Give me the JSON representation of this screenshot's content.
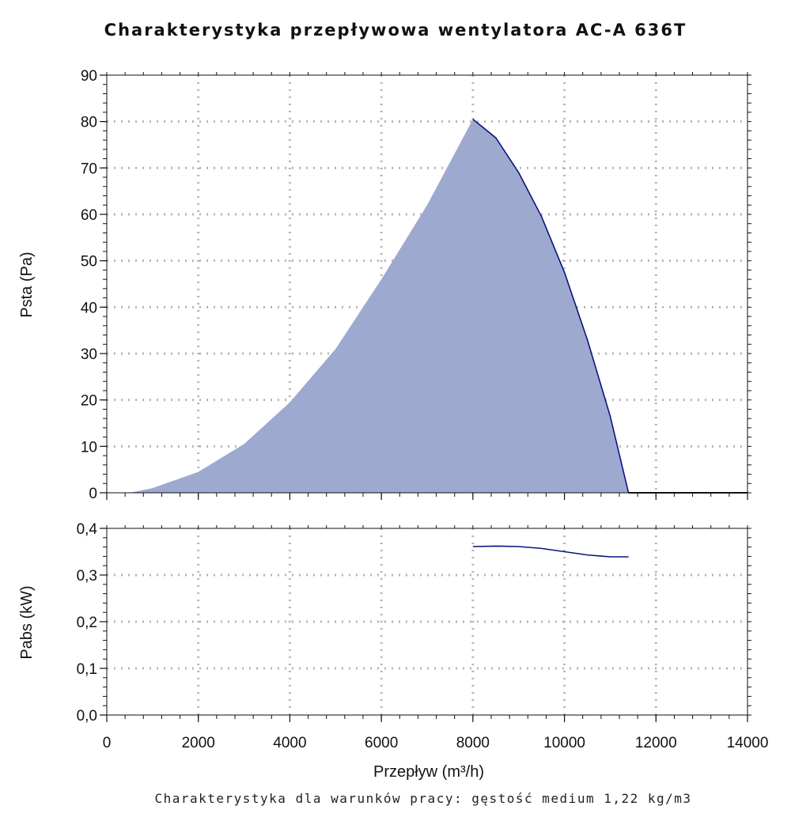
{
  "title": "Charakterystyka przepływowa wentylatora AC-A 636T",
  "footnote": "Charakterystyka dla warunków pracy: gęstość medium 1,22 kg/m3",
  "colors": {
    "fill": "#9ea9cf",
    "line": "#0a1480",
    "grid": "#b5b5b5"
  },
  "chart_data": [
    {
      "type": "area",
      "xlabel": "Przepływ (m³/h)",
      "ylabel": "Psta (Pa)",
      "xlim": [
        0,
        14000
      ],
      "ylim": [
        0,
        90
      ],
      "grid": true,
      "x_ticks": [
        0,
        2000,
        4000,
        6000,
        8000,
        10000,
        12000,
        14000
      ],
      "y_ticks": [
        "0",
        "10",
        "20",
        "30",
        "40",
        "50",
        "60",
        "70",
        "80",
        "90"
      ],
      "y_tick_values": [
        0,
        10,
        20,
        30,
        40,
        50,
        60,
        70,
        80,
        90
      ],
      "series": [
        {
          "filled_region": [
            [
              500,
              0
            ],
            [
              1000,
              1
            ],
            [
              2000,
              4.5
            ],
            [
              3000,
              10.5
            ],
            [
              4000,
              19.5
            ],
            [
              5000,
              31
            ],
            [
              6000,
              46
            ],
            [
              7000,
              62
            ],
            [
              8000,
              80.5
            ]
          ],
          "values": [
            [
              8000,
              80.5
            ],
            [
              8500,
              76.5
            ],
            [
              9000,
              69
            ],
            [
              9500,
              59.5
            ],
            [
              10000,
              47.5
            ],
            [
              10500,
              33
            ],
            [
              11000,
              16.5
            ],
            [
              11400,
              0
            ]
          ]
        }
      ]
    },
    {
      "type": "line",
      "xlabel": "Przepływ (m³/h)",
      "ylabel": "Pabs (kW)",
      "xlim": [
        0,
        14000
      ],
      "ylim": [
        0,
        0.4
      ],
      "grid": true,
      "x_ticks": [
        "0",
        "2000",
        "4000",
        "6000",
        "8000",
        "10000",
        "12000",
        "14000"
      ],
      "x_tick_values": [
        0,
        2000,
        4000,
        6000,
        8000,
        10000,
        12000,
        14000
      ],
      "y_ticks": [
        "0,0",
        "0,1",
        "0,2",
        "0,3",
        "0,4"
      ],
      "y_tick_values": [
        0,
        0.1,
        0.2,
        0.3,
        0.4
      ],
      "series": [
        {
          "values": [
            [
              8000,
              0.361
            ],
            [
              8500,
              0.362
            ],
            [
              9000,
              0.361
            ],
            [
              9500,
              0.357
            ],
            [
              10000,
              0.35
            ],
            [
              10500,
              0.343
            ],
            [
              11000,
              0.339
            ],
            [
              11400,
              0.339
            ]
          ]
        }
      ]
    }
  ]
}
